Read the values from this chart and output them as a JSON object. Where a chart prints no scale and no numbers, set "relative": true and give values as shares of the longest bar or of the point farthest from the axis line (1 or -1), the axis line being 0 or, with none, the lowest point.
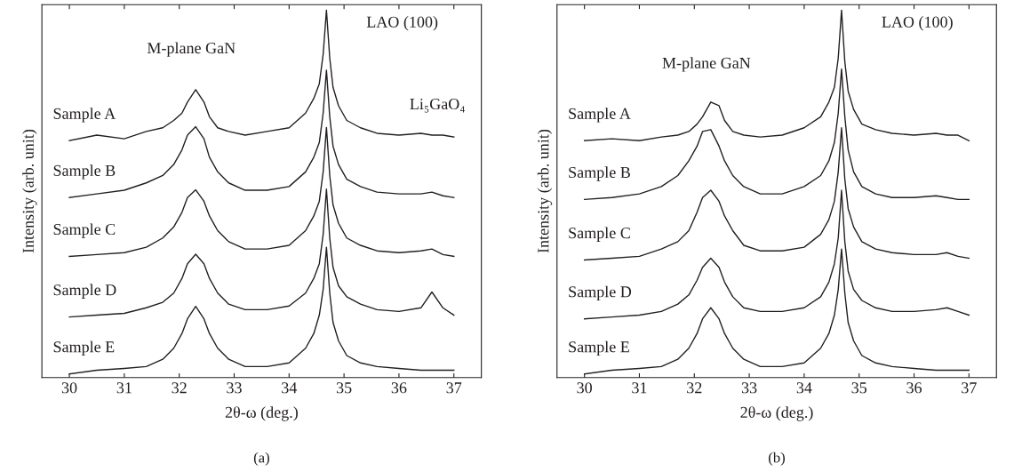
{
  "chart_data": [
    {
      "type": "line",
      "title": "(a)",
      "xlabel": "2θ-ω (deg.)",
      "ylabel": "Intensity (arb. unit)",
      "relative": true,
      "xlim": [
        29.5,
        37.5
      ],
      "xticks": [
        30,
        31,
        32,
        33,
        34,
        35,
        36,
        37
      ],
      "tick_labels": "x",
      "grid": false,
      "marker": "none",
      "line_style": "solid",
      "annotations": [
        "M-plane GaN",
        "LAO (100)",
        "Li₅GaO₄"
      ],
      "x": [
        30.0,
        30.5,
        31.0,
        31.4,
        31.7,
        31.9,
        32.05,
        32.15,
        32.3,
        32.45,
        32.55,
        32.7,
        32.9,
        33.2,
        33.6,
        34.0,
        34.3,
        34.45,
        34.55,
        34.62,
        34.68,
        34.74,
        34.8,
        34.9,
        35.05,
        35.3,
        35.6,
        36.0,
        36.4,
        36.6,
        36.8,
        37.0
      ],
      "series": [
        {
          "name": "Sample A",
          "color": "#231f20",
          "values": [
            0.645,
            0.66,
            0.65,
            0.67,
            0.68,
            0.7,
            0.72,
            0.75,
            0.784,
            0.75,
            0.71,
            0.68,
            0.67,
            0.66,
            0.67,
            0.68,
            0.72,
            0.76,
            0.8,
            0.88,
            1.0,
            0.87,
            0.79,
            0.74,
            0.7,
            0.68,
            0.665,
            0.66,
            0.665,
            0.66,
            0.66,
            0.655
          ]
        },
        {
          "name": "Sample B",
          "color": "#231f20",
          "values": [
            0.49,
            0.5,
            0.51,
            0.53,
            0.55,
            0.58,
            0.62,
            0.66,
            0.683,
            0.65,
            0.6,
            0.56,
            0.53,
            0.51,
            0.51,
            0.52,
            0.56,
            0.6,
            0.64,
            0.72,
            0.837,
            0.71,
            0.63,
            0.58,
            0.54,
            0.52,
            0.505,
            0.5,
            0.5,
            0.505,
            0.495,
            0.49
          ]
        },
        {
          "name": "Sample C",
          "color": "#231f20",
          "values": [
            0.33,
            0.335,
            0.34,
            0.355,
            0.38,
            0.41,
            0.45,
            0.49,
            0.511,
            0.48,
            0.44,
            0.4,
            0.37,
            0.35,
            0.35,
            0.36,
            0.4,
            0.44,
            0.48,
            0.56,
            0.681,
            0.55,
            0.47,
            0.42,
            0.38,
            0.36,
            0.345,
            0.34,
            0.345,
            0.35,
            0.335,
            0.33
          ]
        },
        {
          "name": "Sample D",
          "color": "#231f20",
          "values": [
            0.165,
            0.17,
            0.175,
            0.19,
            0.205,
            0.23,
            0.27,
            0.31,
            0.336,
            0.31,
            0.27,
            0.23,
            0.2,
            0.185,
            0.185,
            0.195,
            0.23,
            0.27,
            0.31,
            0.39,
            0.513,
            0.38,
            0.3,
            0.25,
            0.22,
            0.2,
            0.185,
            0.18,
            0.19,
            0.233,
            0.19,
            0.17
          ]
        },
        {
          "name": "Sample E",
          "color": "#231f20",
          "values": [
            0.01,
            0.02,
            0.025,
            0.03,
            0.05,
            0.08,
            0.12,
            0.16,
            0.194,
            0.16,
            0.12,
            0.08,
            0.05,
            0.03,
            0.03,
            0.04,
            0.08,
            0.12,
            0.17,
            0.24,
            0.355,
            0.23,
            0.15,
            0.1,
            0.06,
            0.04,
            0.03,
            0.025,
            0.02,
            0.02,
            0.02,
            0.02
          ]
        }
      ]
    },
    {
      "type": "line",
      "title": "(b)",
      "xlabel": "2θ-ω (deg.)",
      "ylabel": "Intensity (arb. unit)",
      "relative": true,
      "xlim": [
        29.5,
        37.5
      ],
      "xticks": [
        30,
        31,
        32,
        33,
        34,
        35,
        36,
        37
      ],
      "tick_labels": "x",
      "grid": false,
      "marker": "none",
      "line_style": "solid",
      "annotations": [
        "M-plane GaN",
        "LAO (100)"
      ],
      "x": [
        30.0,
        30.5,
        31.0,
        31.4,
        31.7,
        31.9,
        32.05,
        32.15,
        32.3,
        32.45,
        32.55,
        32.7,
        32.9,
        33.2,
        33.6,
        34.0,
        34.3,
        34.45,
        34.55,
        34.62,
        34.68,
        34.74,
        34.8,
        34.9,
        35.05,
        35.3,
        35.6,
        36.0,
        36.4,
        36.6,
        36.8,
        37.0
      ],
      "series": [
        {
          "name": "Sample A",
          "color": "#231f20",
          "values": [
            0.645,
            0.65,
            0.645,
            0.655,
            0.66,
            0.67,
            0.69,
            0.71,
            0.75,
            0.74,
            0.7,
            0.67,
            0.66,
            0.655,
            0.66,
            0.68,
            0.71,
            0.75,
            0.79,
            0.87,
            1.0,
            0.86,
            0.78,
            0.73,
            0.69,
            0.675,
            0.665,
            0.66,
            0.665,
            0.66,
            0.66,
            0.645
          ]
        },
        {
          "name": "Sample B",
          "color": "#231f20",
          "values": [
            0.485,
            0.49,
            0.5,
            0.52,
            0.55,
            0.59,
            0.63,
            0.67,
            0.675,
            0.63,
            0.59,
            0.55,
            0.52,
            0.5,
            0.5,
            0.52,
            0.55,
            0.59,
            0.64,
            0.72,
            0.84,
            0.71,
            0.62,
            0.56,
            0.52,
            0.5,
            0.49,
            0.49,
            0.495,
            0.49,
            0.485,
            0.485
          ]
        },
        {
          "name": "Sample C",
          "color": "#231f20",
          "values": [
            0.32,
            0.325,
            0.33,
            0.35,
            0.37,
            0.4,
            0.45,
            0.49,
            0.51,
            0.48,
            0.44,
            0.4,
            0.36,
            0.345,
            0.345,
            0.355,
            0.39,
            0.43,
            0.48,
            0.56,
            0.68,
            0.54,
            0.46,
            0.41,
            0.37,
            0.35,
            0.34,
            0.335,
            0.335,
            0.34,
            0.33,
            0.325
          ]
        },
        {
          "name": "Sample D",
          "color": "#231f20",
          "values": [
            0.16,
            0.165,
            0.17,
            0.18,
            0.2,
            0.225,
            0.265,
            0.3,
            0.325,
            0.3,
            0.26,
            0.22,
            0.19,
            0.18,
            0.18,
            0.19,
            0.22,
            0.26,
            0.31,
            0.38,
            0.51,
            0.37,
            0.29,
            0.24,
            0.21,
            0.19,
            0.18,
            0.18,
            0.185,
            0.19,
            0.18,
            0.17
          ]
        },
        {
          "name": "Sample E",
          "color": "#231f20",
          "values": [
            0.01,
            0.02,
            0.025,
            0.03,
            0.05,
            0.08,
            0.12,
            0.16,
            0.19,
            0.16,
            0.12,
            0.08,
            0.05,
            0.03,
            0.03,
            0.04,
            0.08,
            0.12,
            0.17,
            0.24,
            0.35,
            0.23,
            0.15,
            0.1,
            0.06,
            0.04,
            0.03,
            0.025,
            0.02,
            0.02,
            0.02,
            0.02
          ]
        }
      ]
    }
  ]
}
